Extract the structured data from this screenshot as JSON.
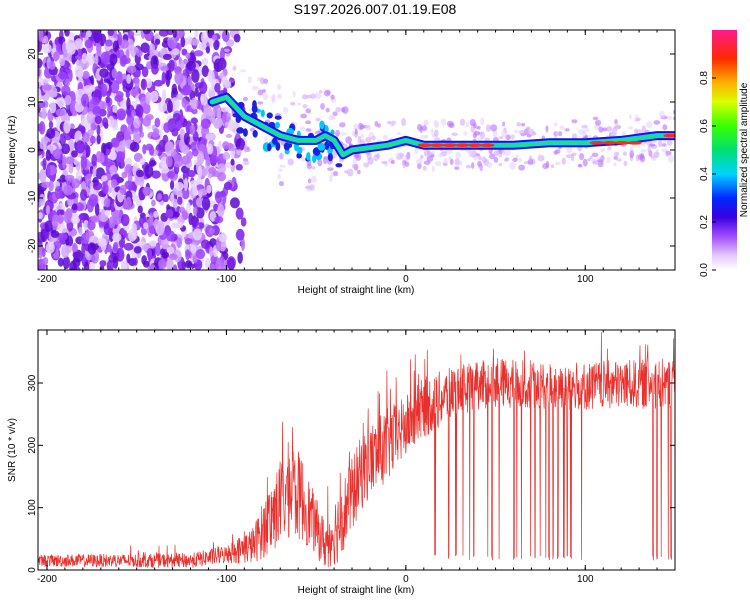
{
  "title": "S197.2026.007.01.19.E08",
  "chart_data": [
    {
      "type": "heatmap",
      "xlabel": "Height of straight line (km)",
      "ylabel": "Frequency (Hz)",
      "xlim": [
        -205,
        150
      ],
      "ylim": [
        -25,
        25
      ],
      "x_ticks": [
        -200,
        -100,
        0,
        100
      ],
      "y_ticks": [
        20,
        10,
        0,
        -10,
        -20
      ],
      "colorbar": {
        "label": "Normalized spectral amplitude",
        "range": [
          0.0,
          1.0
        ],
        "ticks": [
          0.0,
          0.2,
          0.4,
          0.6,
          0.8
        ]
      },
      "ridge": {
        "x": [
          -108,
          -100,
          -90,
          -80,
          -70,
          -60,
          -50,
          -45,
          -40,
          -35,
          -30,
          -20,
          -10,
          0,
          10,
          20,
          40,
          60,
          80,
          100,
          120,
          140,
          150
        ],
        "y": [
          10,
          11,
          7,
          5,
          3,
          2,
          2,
          3,
          2,
          -1,
          0,
          0.5,
          1,
          2,
          1,
          1,
          1,
          1,
          1.5,
          1.5,
          2,
          3,
          3
        ]
      },
      "hot_segments": [
        {
          "x": [
            8,
            50
          ],
          "y": 1
        },
        {
          "x": [
            104,
            130
          ],
          "y": 1.5
        },
        {
          "x": [
            145,
            150
          ],
          "y": 3
        }
      ]
    },
    {
      "type": "line",
      "xlabel": "Height of straight line (km)",
      "ylabel": "SNR (10 * v/v)",
      "xlim": [
        -205,
        150
      ],
      "ylim": [
        0,
        385
      ],
      "x_ticks": [
        -200,
        -100,
        0,
        100
      ],
      "y_ticks": [
        0,
        100,
        200,
        300
      ],
      "color": "#e8302c",
      "envelope": {
        "x": [
          -205,
          -120,
          -100,
          -85,
          -75,
          -65,
          -58,
          -52,
          -45,
          -38,
          -30,
          -25,
          -20,
          -10,
          0,
          10,
          20,
          30,
          50,
          100,
          150
        ],
        "mean": [
          15,
          15,
          25,
          40,
          85,
          130,
          115,
          80,
          40,
          70,
          120,
          155,
          175,
          200,
          230,
          260,
          275,
          290,
          300,
          295,
          300
        ],
        "noise": [
          10,
          12,
          15,
          30,
          60,
          80,
          70,
          50,
          40,
          60,
          60,
          60,
          60,
          60,
          50,
          50,
          45,
          40,
          40,
          40,
          40
        ]
      },
      "dropouts": [
        16,
        24,
        28,
        32,
        36,
        38,
        40,
        46,
        48,
        52,
        60,
        62,
        64,
        67,
        70,
        72,
        75,
        78,
        80,
        82,
        85,
        88,
        90,
        92,
        96,
        98,
        138,
        140,
        142,
        146,
        148
      ],
      "dropout_floor": 15
    }
  ]
}
